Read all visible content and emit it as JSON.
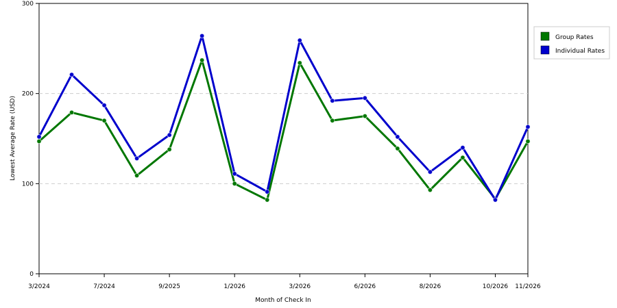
{
  "chart_data": {
    "type": "line",
    "xlabel": "Month of Check In",
    "ylabel": "Lowest Average Rate (USD)",
    "ylim": [
      0,
      300
    ],
    "yticks": [
      0,
      100,
      200,
      300
    ],
    "grid": true,
    "legend_position": "right",
    "x_tick_labels": [
      "3/2024",
      "7/2024",
      "9/2025",
      "1/2026",
      "3/2026",
      "6/2026",
      "8/2026",
      "10/2026",
      "11/2026"
    ],
    "x_tick_indices": [
      0,
      2,
      4,
      6,
      8,
      10,
      12,
      14,
      15
    ],
    "series": [
      {
        "name": "Group Rates",
        "color": "#007700",
        "values": [
          147,
          179,
          170,
          109,
          138,
          237,
          100,
          82,
          234,
          170,
          175,
          139,
          93,
          129,
          83,
          147
        ]
      },
      {
        "name": "Individual Rates",
        "color": "#0000cc",
        "values": [
          152,
          221,
          187,
          128,
          154,
          264,
          111,
          91,
          259,
          192,
          195,
          152,
          113,
          140,
          82,
          163
        ]
      }
    ]
  }
}
